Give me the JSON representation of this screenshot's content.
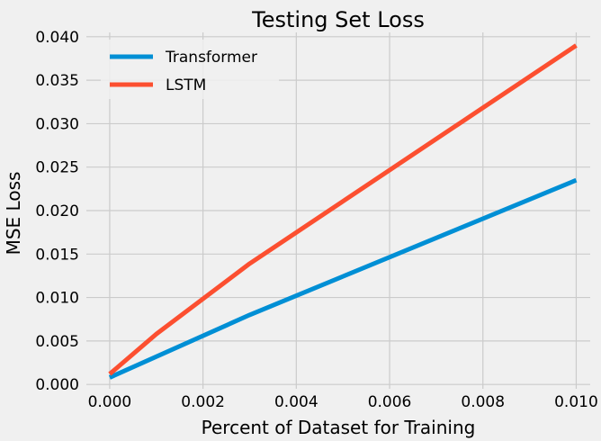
{
  "chart_data": {
    "type": "line",
    "title": "Testing Set Loss",
    "xlabel": "Percent of Dataset for Training",
    "ylabel": "MSE Loss",
    "xlim": [
      -0.0005,
      0.0103
    ],
    "ylim": [
      -0.0005,
      0.0405
    ],
    "xticks": [
      0.0,
      0.002,
      0.004,
      0.006,
      0.008,
      0.01
    ],
    "xtick_labels": [
      "0.000",
      "0.002",
      "0.004",
      "0.006",
      "0.008",
      "0.010"
    ],
    "yticks": [
      0.0,
      0.005,
      0.01,
      0.015,
      0.02,
      0.025,
      0.03,
      0.035,
      0.04
    ],
    "ytick_labels": [
      "0.000",
      "0.005",
      "0.010",
      "0.015",
      "0.020",
      "0.025",
      "0.030",
      "0.035",
      "0.040"
    ],
    "grid": true,
    "legend_position": "top-left",
    "series": [
      {
        "name": "Transformer",
        "color": "#008fd5",
        "x": [
          0.0,
          0.003,
          0.01
        ],
        "y": [
          0.0008,
          0.008,
          0.0235
        ]
      },
      {
        "name": "LSTM",
        "color": "#fc4f30",
        "x": [
          0.0,
          0.001,
          0.003,
          0.01
        ],
        "y": [
          0.0012,
          0.0058,
          0.0139,
          0.039
        ]
      }
    ]
  }
}
